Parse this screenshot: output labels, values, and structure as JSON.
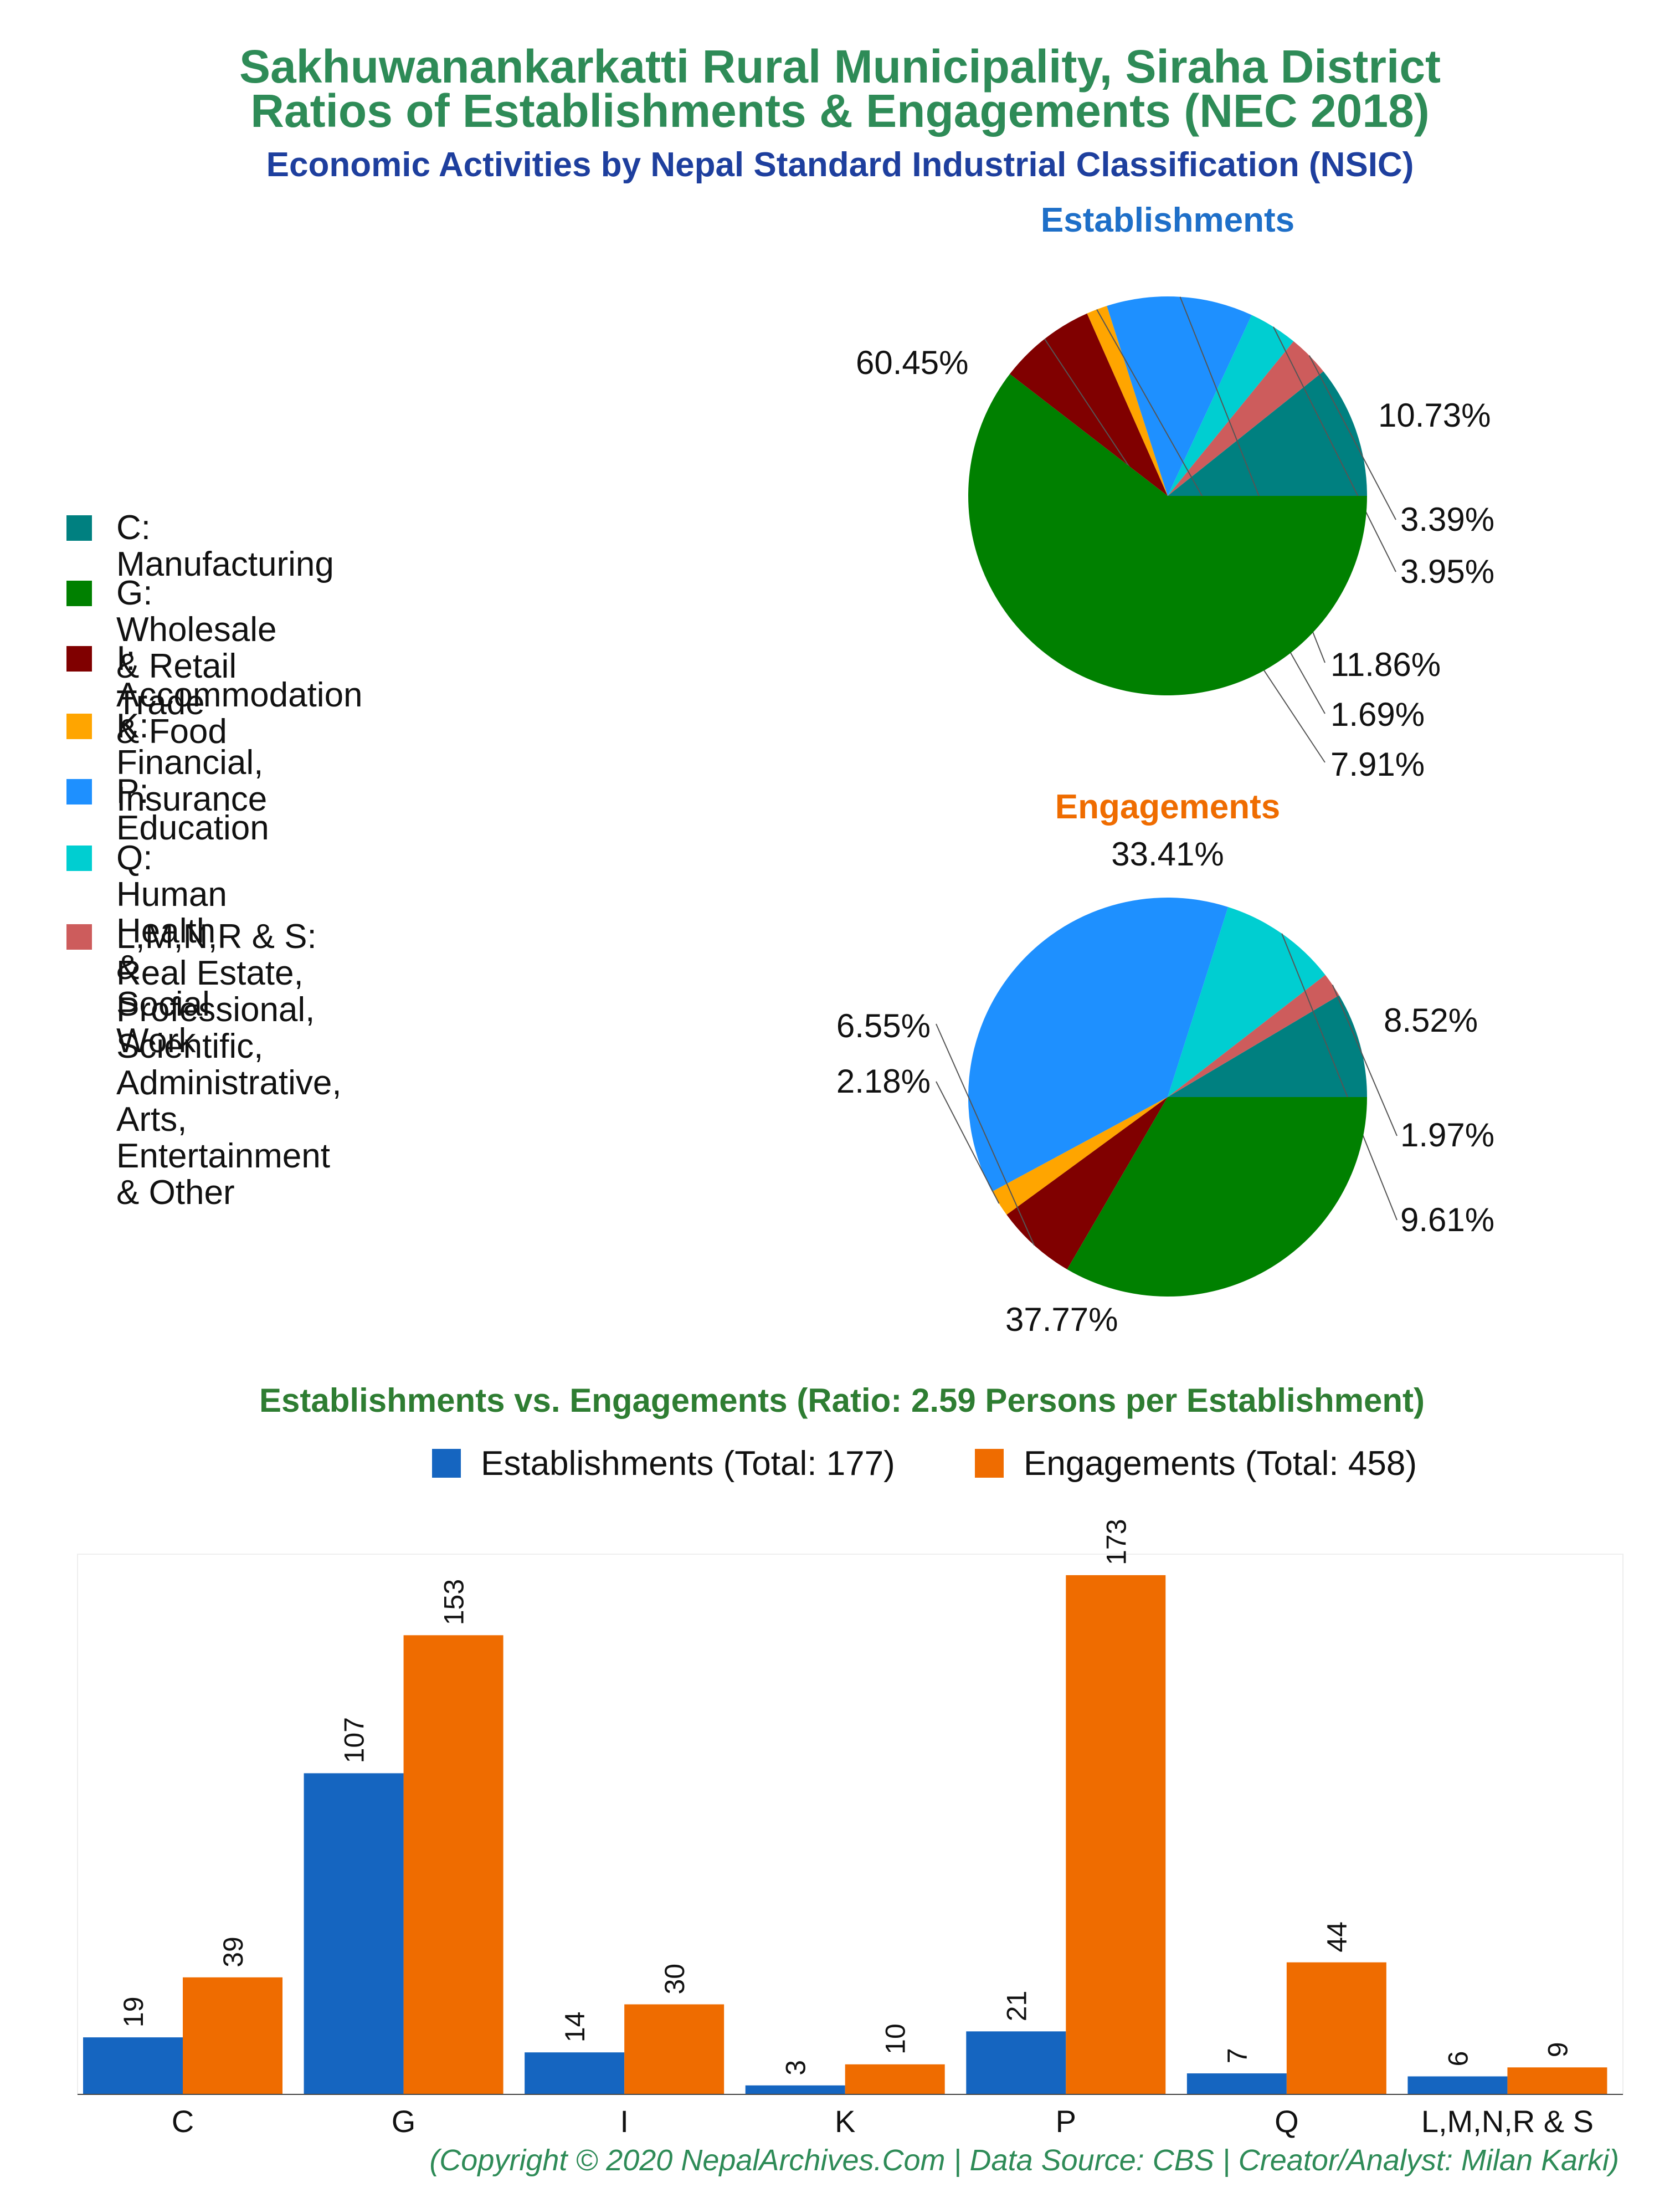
{
  "header": {
    "title_line1": "Sakhuwanankarkatti Rural Municipality, Siraha District",
    "title_line2": "Ratios of Establishments & Engagements (NEC 2018)",
    "subtitle": "Economic Activities by Nepal Standard Industrial Classification (NSIC)"
  },
  "colors": {
    "C": "#008080",
    "G": "#008000",
    "I": "#800000",
    "K": "#FFA500",
    "P": "#1E90FF",
    "Q": "#00CED1",
    "L": "#CD5C5C",
    "establishments_bar": "#1565C0",
    "engagements_bar": "#EF6C00",
    "establishments_title": "#1E6FC8",
    "engagements_title": "#EF6C00",
    "bar_title": "#2E7D32"
  },
  "legend": [
    {
      "key": "C",
      "label": "C: Manufacturing"
    },
    {
      "key": "G",
      "label": "G: Wholesale & Retail Trade"
    },
    {
      "key": "I",
      "label": "I: Accommodation & Food"
    },
    {
      "key": "K",
      "label": "K: Financial, Insurance"
    },
    {
      "key": "P",
      "label": "P: Education"
    },
    {
      "key": "Q",
      "label": "Q: Human Health & Social Work"
    },
    {
      "key": "L",
      "label": "L,M,N,R & S: Real Estate, Professional,\nScientific, Administrative, Arts,\nEntertainment & Other"
    }
  ],
  "chart_data": [
    {
      "type": "pie",
      "title": "Establishments",
      "slices": [
        {
          "key": "C",
          "value": 10.73,
          "label": "10.73%"
        },
        {
          "key": "L",
          "value": 3.39,
          "label": "3.39%"
        },
        {
          "key": "Q",
          "value": 3.95,
          "label": "3.95%"
        },
        {
          "key": "P",
          "value": 11.86,
          "label": "11.86%"
        },
        {
          "key": "K",
          "value": 1.69,
          "label": "1.69%"
        },
        {
          "key": "I",
          "value": 7.91,
          "label": "7.91%"
        },
        {
          "key": "G",
          "value": 60.45,
          "label": "60.45%"
        }
      ]
    },
    {
      "type": "pie",
      "title": "Engagements",
      "slices": [
        {
          "key": "C",
          "value": 8.52,
          "label": "8.52%"
        },
        {
          "key": "L",
          "value": 1.97,
          "label": "1.97%"
        },
        {
          "key": "Q",
          "value": 9.61,
          "label": "9.61%"
        },
        {
          "key": "P",
          "value": 37.77,
          "label": "37.77%"
        },
        {
          "key": "K",
          "value": 2.18,
          "label": "2.18%"
        },
        {
          "key": "I",
          "value": 6.55,
          "label": "6.55%"
        },
        {
          "key": "G",
          "value": 33.41,
          "label": "33.41%"
        }
      ]
    },
    {
      "type": "bar",
      "title": "Establishments vs. Engagements (Ratio: 2.59 Persons per Establishment)",
      "categories": [
        "C",
        "G",
        "I",
        "K",
        "P",
        "Q",
        "L,M,N,R & S"
      ],
      "series": [
        {
          "name": "Establishments (Total: 177)",
          "values": [
            19,
            107,
            14,
            3,
            21,
            7,
            6
          ]
        },
        {
          "name": "Engagements (Total: 458)",
          "values": [
            39,
            153,
            30,
            10,
            173,
            44,
            9
          ]
        }
      ],
      "ylim": [
        0,
        180
      ],
      "legend_position": "top"
    }
  ],
  "footer": {
    "copyright": "(Copyright © 2020 NepalArchives.Com | Data Source: CBS | Creator/Analyst: Milan Karki)"
  }
}
